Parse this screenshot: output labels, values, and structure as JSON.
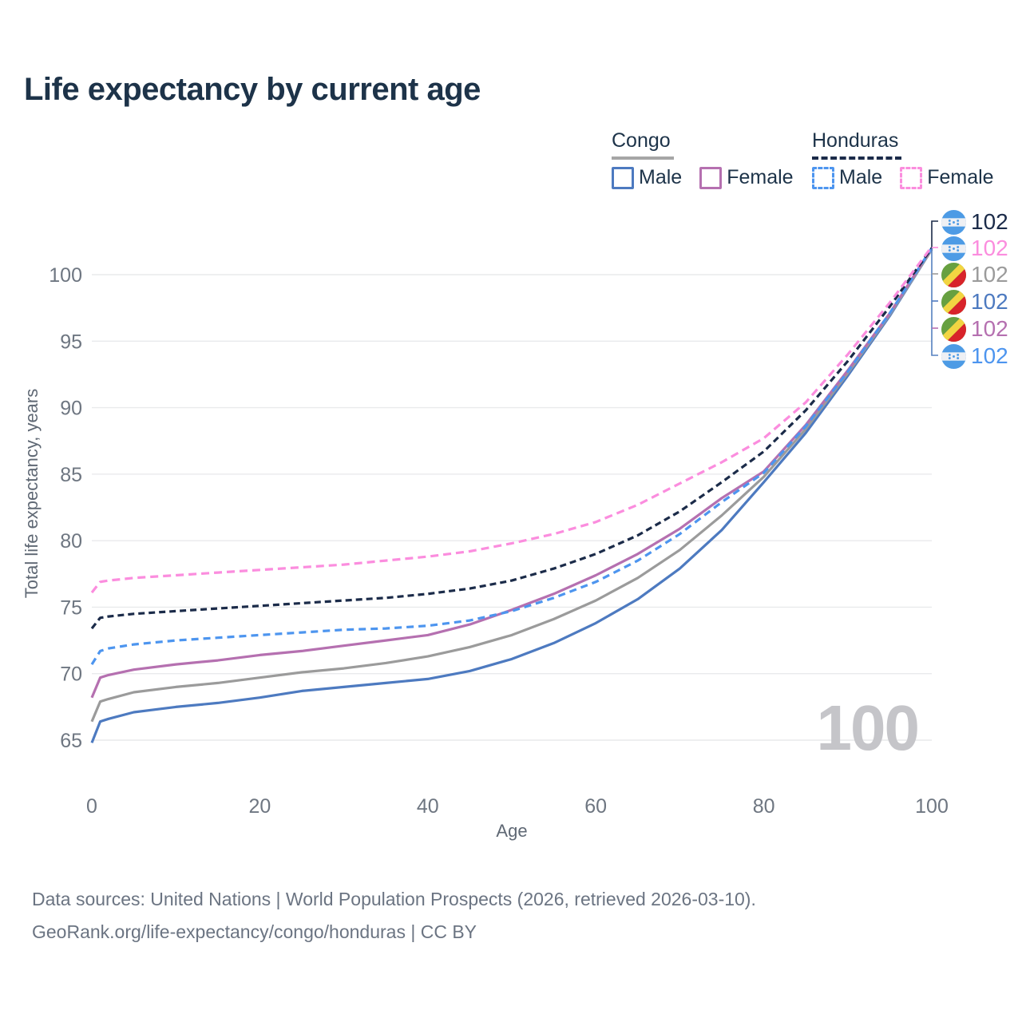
{
  "title": "Life expectancy by current age",
  "legend": {
    "groups": [
      {
        "label": "Congo",
        "line_style": "solid",
        "line_color": "#a6a6a6",
        "items": [
          {
            "label": "Male",
            "color": "#4d7ac0",
            "dashed": false
          },
          {
            "label": "Female",
            "color": "#b570b0",
            "dashed": false
          }
        ]
      },
      {
        "label": "Honduras",
        "line_style": "dashed",
        "line_color": "#1b2b49",
        "items": [
          {
            "label": "Male",
            "color": "#4d95ef",
            "dashed": true
          },
          {
            "label": "Female",
            "color": "#fb8dde",
            "dashed": true
          }
        ]
      }
    ]
  },
  "watermark_age_counter": "100",
  "right_labels": [
    {
      "flag": "honduras",
      "text": "102",
      "color": "#1b2b49",
      "series": "Honduras (both sexes)"
    },
    {
      "flag": "honduras",
      "text": "102",
      "color": "#fb8dde",
      "series": "Honduras Female"
    },
    {
      "flag": "congo",
      "text": "102",
      "color": "#9b9b9b",
      "series": "Congo (both sexes)"
    },
    {
      "flag": "congo",
      "text": "102",
      "color": "#4d7ac0",
      "series": "Congo Male"
    },
    {
      "flag": "congo",
      "text": "102",
      "color": "#b570b0",
      "series": "Congo Female"
    },
    {
      "flag": "honduras",
      "text": "102",
      "color": "#4d95ef",
      "series": "Honduras Male"
    }
  ],
  "footer": {
    "line1": "Data sources: United Nations | World Population Prospects (2026, retrieved 2026-03-10).",
    "line2": "GeoRank.org/life-expectancy/congo/honduras | CC BY"
  },
  "colors": {
    "title_text": "#1d3349",
    "axis_text": "#6e7681",
    "grid": "#e9eaec",
    "watermark": "#c5c5c9",
    "leader_top": "#1b2b49",
    "leader_bottom": "#5580c0",
    "congo_flag_green": "#67a040",
    "congo_flag_yellow": "#f2d542",
    "congo_flag_red": "#d8232a",
    "honduras_flag_blue": "#4d9be5",
    "honduras_flag_white": "#eef0f4"
  },
  "chart_data": {
    "type": "line",
    "title": "Life expectancy by current age",
    "xlabel": "Age",
    "ylabel": "Total life expectancy, years",
    "xlim": [
      0,
      100
    ],
    "ylim": [
      63,
      103
    ],
    "xticks": [
      0,
      20,
      40,
      60,
      80,
      100
    ],
    "yticks": [
      65,
      70,
      75,
      80,
      85,
      90,
      95,
      100
    ],
    "grid": "horizontal",
    "legend_position": "top-right",
    "x": [
      0,
      1,
      2,
      5,
      10,
      15,
      20,
      25,
      30,
      35,
      40,
      45,
      50,
      55,
      60,
      65,
      70,
      75,
      80,
      85,
      90,
      95,
      100
    ],
    "series": [
      {
        "name": "Congo Male",
        "country": "Congo",
        "sex": "Male",
        "color": "#4d7ac0",
        "dash": null,
        "end_label": "102",
        "values": [
          64.8,
          66.4,
          66.6,
          67.1,
          67.5,
          67.8,
          68.2,
          68.7,
          69.0,
          69.3,
          69.6,
          70.2,
          71.1,
          72.3,
          73.8,
          75.6,
          77.9,
          80.8,
          84.4,
          88.1,
          92.4,
          96.9,
          101.9
        ]
      },
      {
        "name": "Congo (both sexes)",
        "country": "Congo",
        "sex": "Both",
        "color": "#9b9b9b",
        "dash": null,
        "end_label": "102",
        "values": [
          66.4,
          67.9,
          68.1,
          68.6,
          69.0,
          69.3,
          69.7,
          70.1,
          70.4,
          70.8,
          71.3,
          72.0,
          72.9,
          74.1,
          75.5,
          77.2,
          79.3,
          81.9,
          84.8,
          88.4,
          92.6,
          97.0,
          101.9
        ]
      },
      {
        "name": "Congo Female",
        "country": "Congo",
        "sex": "Female",
        "color": "#b570b0",
        "dash": null,
        "end_label": "102",
        "values": [
          68.2,
          69.7,
          69.9,
          70.3,
          70.7,
          71.0,
          71.4,
          71.7,
          72.1,
          72.5,
          72.9,
          73.7,
          74.8,
          76.0,
          77.4,
          79.0,
          80.9,
          83.2,
          85.2,
          88.7,
          92.8,
          97.1,
          102.0
        ]
      },
      {
        "name": "Honduras Male",
        "country": "Honduras",
        "sex": "Male",
        "color": "#4d95ef",
        "dash": "9 6",
        "end_label": "102",
        "values": [
          70.7,
          71.7,
          71.9,
          72.2,
          72.5,
          72.7,
          72.9,
          73.1,
          73.3,
          73.4,
          73.6,
          74.0,
          74.7,
          75.7,
          76.9,
          78.5,
          80.5,
          82.9,
          85.1,
          88.6,
          92.7,
          97.1,
          102.0
        ]
      },
      {
        "name": "Honduras (both sexes)",
        "country": "Honduras",
        "sex": "Both",
        "color": "#1b2b49",
        "dash": "8 5",
        "end_label": "102",
        "values": [
          73.4,
          74.2,
          74.3,
          74.5,
          74.7,
          74.9,
          75.1,
          75.3,
          75.5,
          75.7,
          76.0,
          76.4,
          77.0,
          77.9,
          79.0,
          80.4,
          82.2,
          84.4,
          86.7,
          89.8,
          93.5,
          97.6,
          102.0
        ]
      },
      {
        "name": "Honduras Female",
        "country": "Honduras",
        "sex": "Female",
        "color": "#fb8dde",
        "dash": "10 6",
        "end_label": "102",
        "values": [
          76.1,
          76.9,
          77.0,
          77.2,
          77.4,
          77.6,
          77.8,
          78.0,
          78.2,
          78.5,
          78.8,
          79.2,
          79.8,
          80.5,
          81.4,
          82.7,
          84.3,
          85.9,
          87.7,
          90.4,
          94.0,
          97.9,
          102.1
        ]
      }
    ]
  }
}
